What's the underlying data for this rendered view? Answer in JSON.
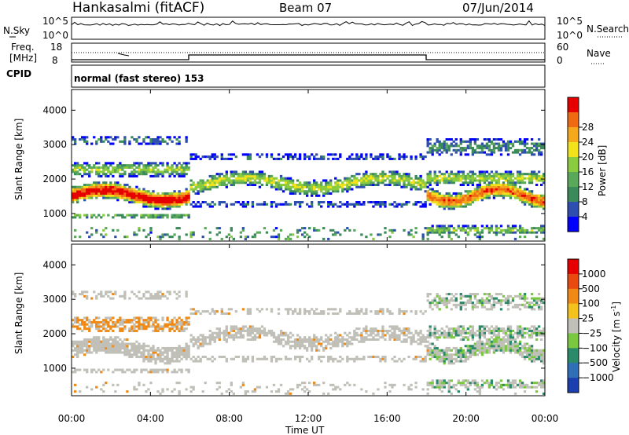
{
  "header": {
    "station": "Hankasalmi (fitACF)",
    "beam": "Beam 07",
    "date": "07/Jun/2014"
  },
  "noise_panel": {
    "left_label": "N.Sky",
    "right_label": "N.Search",
    "left_ticks": [
      "10^5",
      "10^0"
    ],
    "right_ticks": [
      "10^5",
      "10^0"
    ]
  },
  "freq_panel": {
    "left_label": [
      "Freq.",
      "[MHz]"
    ],
    "right_label": "Nave",
    "left_ticks": [
      "18",
      "8"
    ],
    "right_ticks": [
      "60",
      "0"
    ]
  },
  "cpid": {
    "label": "CPID",
    "text": "normal (fast stereo) 153"
  },
  "chart_data": [
    {
      "type": "heatmap",
      "name": "power",
      "ylabel": "Slant Range [km]",
      "xlabel": "Time UT",
      "xticks": [
        "00:00",
        "04:00",
        "08:00",
        "12:00",
        "16:00",
        "20:00",
        "00:00"
      ],
      "yticks": [
        1000,
        2000,
        3000,
        4000
      ],
      "ylim": [
        200,
        4600
      ],
      "colorbar": {
        "label": "Power [dB]",
        "ticks": [
          4,
          8,
          12,
          16,
          20,
          24,
          28
        ],
        "colors": [
          "#0000ff",
          "#2e4fb0",
          "#3a8a5a",
          "#5aa85a",
          "#8acb3f",
          "#f2e21c",
          "#f4a81c",
          "#f06a14",
          "#e60000"
        ]
      }
    },
    {
      "type": "heatmap",
      "name": "velocity",
      "ylabel": "Slant Range [km]",
      "xlabel": "Time UT",
      "xticks": [
        "00:00",
        "04:00",
        "08:00",
        "12:00",
        "16:00",
        "20:00",
        "00:00"
      ],
      "yticks": [
        1000,
        2000,
        3000,
        4000
      ],
      "ylim": [
        200,
        4600
      ],
      "colorbar": {
        "label": "Velocity [m s",
        "label_sup": "-1",
        "label_end": "]",
        "ticks": [
          "1000",
          "500",
          "100",
          "25",
          "−25",
          "−100",
          "−500",
          "−1000"
        ],
        "colors": [
          "#1c3fb0",
          "#2e6fb8",
          "#2a8a6a",
          "#7ac840",
          "#c0c0b8",
          "#f4c21c",
          "#f08a14",
          "#e84a10",
          "#e60000"
        ]
      }
    }
  ],
  "time_axis": {
    "label": "Time UT",
    "ticks": [
      "00:00",
      "04:00",
      "08:00",
      "12:00",
      "16:00",
      "20:00",
      "00:00"
    ]
  }
}
